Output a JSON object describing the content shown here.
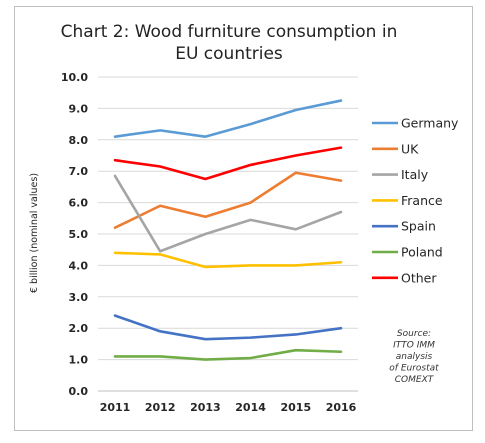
{
  "chart_data": {
    "type": "line",
    "title_lines": [
      "Chart 2: Wood furniture consumption in",
      "EU countries"
    ],
    "ylabel": "€ billion (nominal values)",
    "xlabel": "",
    "x": [
      "2011",
      "2012",
      "2013",
      "2014",
      "2015",
      "2016"
    ],
    "ylim": [
      0,
      10
    ],
    "y_ticks": [
      "0.0",
      "1.0",
      "2.0",
      "3.0",
      "4.0",
      "5.0",
      "6.0",
      "7.0",
      "8.0",
      "9.0",
      "10.0"
    ],
    "grid": true,
    "legend_position": "right",
    "series": [
      {
        "name": "Germany",
        "color": "#5b9bd5",
        "values": [
          8.1,
          8.3,
          8.1,
          8.5,
          8.95,
          9.25
        ]
      },
      {
        "name": "UK",
        "color": "#ed7d31",
        "values": [
          5.2,
          5.9,
          5.55,
          6.0,
          6.95,
          6.7
        ]
      },
      {
        "name": "Italy",
        "color": "#a5a5a5",
        "values": [
          6.85,
          4.45,
          5.0,
          5.45,
          5.15,
          5.7
        ]
      },
      {
        "name": "France",
        "color": "#ffc000",
        "values": [
          4.4,
          4.35,
          3.95,
          4.0,
          4.0,
          4.1
        ]
      },
      {
        "name": "Spain",
        "color": "#4472c4",
        "values": [
          2.4,
          1.9,
          1.65,
          1.7,
          1.8,
          2.0
        ]
      },
      {
        "name": "Poland",
        "color": "#70ad47",
        "values": [
          1.1,
          1.1,
          1.0,
          1.05,
          1.3,
          1.25
        ]
      },
      {
        "name": "Other",
        "color": "#ff0000",
        "values": [
          7.35,
          7.15,
          6.75,
          7.2,
          7.5,
          7.75
        ]
      }
    ],
    "source_lines": [
      "Source:",
      "ITTO IMM",
      "analysis",
      "of Eurostat",
      "COMEXT"
    ]
  }
}
